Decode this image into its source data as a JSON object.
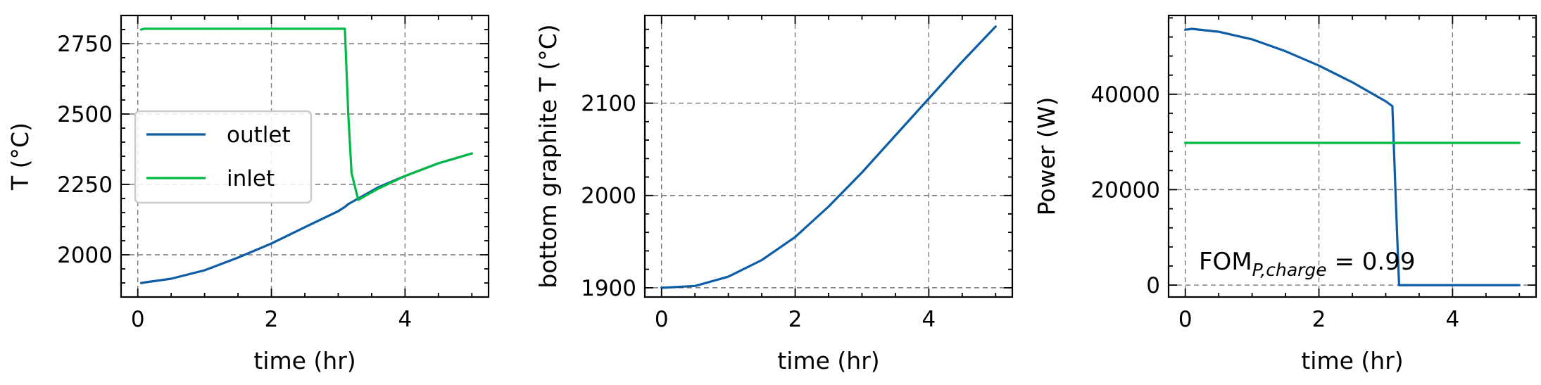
{
  "colors": {
    "outlet": "#0c5da5",
    "inlet": "#00b945"
  },
  "chart_data": [
    {
      "type": "line",
      "xlabel": "time (hr)",
      "ylabel": "T (°C)",
      "xlim": [
        -0.25,
        5.25
      ],
      "ylim": [
        1850,
        2850
      ],
      "xticks": [
        0,
        2,
        4
      ],
      "yticks": [
        2000,
        2250,
        2500,
        2750
      ],
      "grid": true,
      "legend": {
        "placement": "center-left",
        "entries": [
          "outlet",
          "inlet"
        ]
      },
      "series": [
        {
          "name": "outlet",
          "color_key": "outlet",
          "x": [
            0.05,
            0.5,
            1.0,
            1.5,
            2.0,
            2.5,
            3.0,
            3.1,
            3.15,
            3.3,
            3.6,
            4.0,
            4.5,
            5.0
          ],
          "y": [
            1900,
            1915,
            1945,
            1990,
            2040,
            2098,
            2155,
            2170,
            2180,
            2200,
            2240,
            2280,
            2325,
            2360
          ]
        },
        {
          "name": "inlet",
          "color_key": "inlet",
          "x": [
            0.05,
            0.1,
            3.1,
            3.15,
            3.2,
            3.3,
            3.6,
            4.0,
            4.5,
            5.0
          ],
          "y": [
            2800,
            2803,
            2803,
            2500,
            2290,
            2195,
            2235,
            2280,
            2325,
            2360
          ]
        }
      ]
    },
    {
      "type": "line",
      "xlabel": "time (hr)",
      "ylabel": "bottom graphite T (°C)",
      "xlim": [
        -0.25,
        5.25
      ],
      "ylim": [
        1890,
        2195
      ],
      "xticks": [
        0,
        2,
        4
      ],
      "yticks": [
        1900,
        2000,
        2100
      ],
      "grid": true,
      "series": [
        {
          "color_key": "outlet",
          "x": [
            0.0,
            0.5,
            1.0,
            1.5,
            2.0,
            2.5,
            3.0,
            3.5,
            4.0,
            4.5,
            5.0
          ],
          "y": [
            1900,
            1902,
            1912,
            1930,
            1955,
            1988,
            2025,
            2065,
            2105,
            2145,
            2183
          ]
        }
      ]
    },
    {
      "type": "line",
      "xlabel": "time (hr)",
      "ylabel": "Power (W)",
      "xlim": [
        -0.25,
        5.25
      ],
      "ylim": [
        -2500,
        56500
      ],
      "xticks": [
        0,
        2,
        4
      ],
      "yticks": [
        0,
        20000,
        40000
      ],
      "grid": true,
      "annotation": {
        "main": "FOM",
        "sub": "P,charge",
        "rest": " = 0.99"
      },
      "series": [
        {
          "color_key": "outlet",
          "x": [
            0.0,
            0.1,
            0.5,
            1.0,
            1.5,
            2.0,
            2.5,
            3.0,
            3.1,
            3.15,
            3.2,
            4.0,
            5.0
          ],
          "y": [
            53500,
            53700,
            53100,
            51500,
            49000,
            46000,
            42500,
            38500,
            37500,
            18000,
            0,
            0,
            0
          ]
        },
        {
          "color_key": "inlet",
          "x": [
            0.0,
            5.0
          ],
          "y": [
            29800,
            29800
          ]
        }
      ]
    }
  ]
}
